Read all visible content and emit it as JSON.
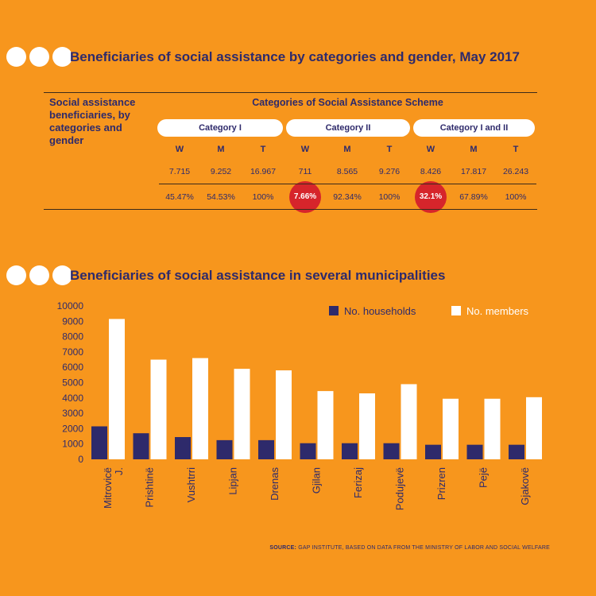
{
  "table_section": {
    "title": "Beneficiaries of social assistance by categories and gender, May 2017",
    "row_label": "Social assistance beneficiaries, by categories and gender",
    "categories_title": "Categories of Social Assistance Scheme",
    "categories": [
      "Category I",
      "Category  II",
      "Category I and II"
    ],
    "subheaders": [
      "W",
      "M",
      "T",
      "W",
      "M",
      "T",
      "W",
      "M",
      "T"
    ],
    "counts": [
      "7.715",
      "9.252",
      "16.967",
      "711",
      "8.565",
      "9.276",
      "8.426",
      "17.817",
      "26.243"
    ],
    "percents": [
      "45.47%",
      "54.53%",
      "100%",
      "7.66%",
      "92.34%",
      "100%",
      "32.1%",
      "67.89%",
      "100%"
    ],
    "highlight_color": "#D6252B"
  },
  "chart_section": {
    "title": "Beneficiaries of social assistance in several municipalities"
  },
  "chart_data": {
    "type": "bar",
    "categories": [
      "Mitrovicë J.",
      "Prishtinë",
      "Vushtrri",
      "Lipjan",
      "Drenas",
      "Gjilan",
      "Ferizaj",
      "Podujevë",
      "Prizren",
      "Pejë",
      "Gjakovë"
    ],
    "series": [
      {
        "name": "No. households",
        "color": "#2E2A6B",
        "values": [
          2150,
          1700,
          1450,
          1250,
          1250,
          1050,
          1050,
          1050,
          950,
          950,
          950
        ]
      },
      {
        "name": "No. members",
        "color": "#FFFFFF",
        "values": [
          9150,
          6500,
          6600,
          5900,
          5800,
          4450,
          4300,
          4900,
          3950,
          3950,
          4050
        ]
      }
    ],
    "yticks": [
      0,
      1000,
      2000,
      3000,
      4000,
      5000,
      6000,
      7000,
      8000,
      9000,
      10000
    ],
    "ylim": [
      0,
      10000
    ],
    "legend_position": "top-right",
    "grid": false
  },
  "source": {
    "label": "SOURCE:",
    "text": "GAP INSTITUTE, BASED ON DATA FROM THE MINISTRY OF LABOR AND SOCIAL WELFARE"
  }
}
